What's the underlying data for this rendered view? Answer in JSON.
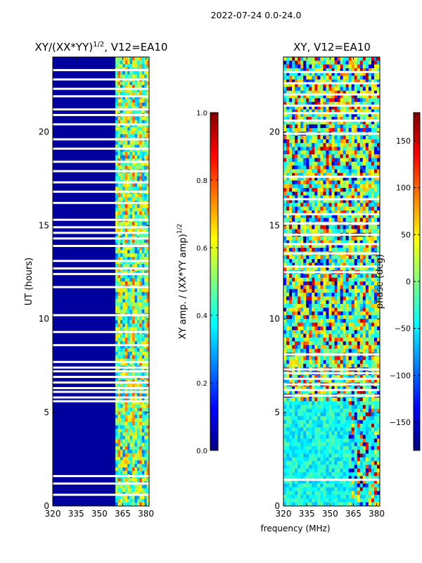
{
  "figure": {
    "suptitle": "2022-07-24 0.0-24.0",
    "xlabel_shared": "frequency (MHz)"
  },
  "colors": {
    "jet": [
      "#00007f",
      "#0000ff",
      "#007fff",
      "#00ffff",
      "#7fff7f",
      "#ffff00",
      "#ff7f00",
      "#ff0000",
      "#7f0000"
    ],
    "background": "#ffffff"
  },
  "chart_data": [
    {
      "type": "heatmap",
      "title": "XY/(XX*YY)",
      "title_exponent": "1/2",
      "title_suffix": ", V12=EA10",
      "xlabel": "",
      "ylabel": "UT (hours)",
      "xlim": [
        320,
        382
      ],
      "ylim": [
        0,
        24
      ],
      "xticks": [
        320,
        335,
        350,
        365,
        380
      ],
      "yticks": [
        0,
        5,
        10,
        15,
        20
      ],
      "colorbar": {
        "label": "XY amp. / (XX*YY amp)",
        "label_exponent": "1/2",
        "range": [
          0.0,
          1.0
        ],
        "ticks": [
          "0.0",
          "0.2",
          "0.4",
          "0.6",
          "0.8",
          "1.0"
        ]
      },
      "features": {
        "low_band_level": 0.03,
        "active_band_mhz": [
          360,
          382
        ],
        "active_band_level": 0.45,
        "gaps_hours": [
          0.6,
          1.2,
          1.6,
          5.6,
          5.8,
          6.1,
          6.3,
          6.6,
          6.9,
          7.2,
          7.4,
          7.7,
          8.6,
          9.3,
          10.2,
          11.7,
          12.4,
          12.7,
          13.1,
          13.9,
          14.3,
          14.6,
          14.9,
          15.3,
          16.2,
          16.8,
          17.3,
          17.9,
          18.4,
          19.1,
          19.6,
          20.4,
          20.9,
          21.2,
          21.9,
          22.3,
          22.8,
          23.3
        ]
      }
    },
    {
      "type": "heatmap",
      "title": "XY, V12=EA10",
      "xlabel": "",
      "ylabel": "",
      "xlim": [
        320,
        382
      ],
      "ylim": [
        0,
        24
      ],
      "xticks": [
        320,
        335,
        350,
        365,
        380
      ],
      "yticks": [
        0,
        5,
        10,
        15,
        20
      ],
      "colorbar": {
        "label": "phase (deg)",
        "range": [
          -180,
          180
        ],
        "ticks": [
          "-150",
          "-100",
          "-50",
          "0",
          "50",
          "100",
          "150"
        ]
      },
      "features": {
        "quiet_phase_deg": -40,
        "noisy_phase_spread_deg": 180,
        "gaps_hours": [
          1.4,
          5.9,
          6.2,
          6.5,
          6.8,
          7.1,
          7.3,
          8.1,
          12.5,
          12.8,
          13.5,
          14.0,
          14.5,
          15.1,
          15.6,
          16.4,
          17.6,
          19.9,
          20.6,
          21.0,
          21.4,
          22.0,
          22.6,
          23.2
        ]
      }
    }
  ]
}
